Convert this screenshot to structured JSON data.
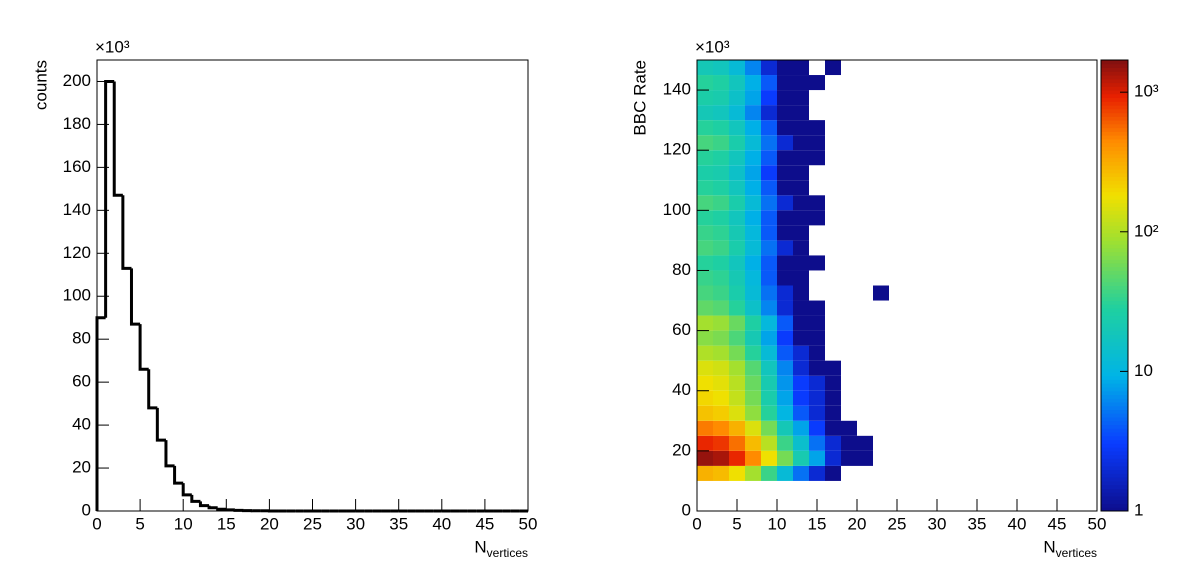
{
  "chart_data": [
    {
      "type": "histogram",
      "y_label": "counts",
      "y_multiplier": "×10³",
      "x_label": "N",
      "x_label_sub": "vertices",
      "bins": [
        0,
        1,
        2,
        3,
        4,
        5,
        6,
        7,
        8,
        9,
        10,
        11,
        12,
        13,
        14,
        15,
        16,
        17,
        18,
        19,
        20,
        21,
        22,
        23,
        24,
        25,
        26,
        27,
        28,
        29,
        30,
        31,
        32,
        33,
        34,
        35,
        36,
        37,
        38,
        39,
        40,
        41,
        42,
        43,
        44,
        45,
        46,
        47,
        48,
        49,
        50
      ],
      "values": [
        90,
        200,
        147,
        113,
        87,
        66,
        48,
        33,
        21,
        13,
        7.5,
        4.5,
        2.5,
        1.5,
        0.8,
        0.5,
        0.3,
        0.2,
        0.1,
        0.1,
        0,
        0,
        0,
        0,
        0,
        0,
        0,
        0,
        0,
        0,
        0,
        0,
        0,
        0,
        0,
        0,
        0,
        0,
        0,
        0,
        0,
        0,
        0,
        0,
        0,
        0,
        0,
        0,
        0,
        0
      ],
      "color": "#000000",
      "xlim": [
        0,
        50
      ],
      "xticks": [
        0,
        5,
        10,
        15,
        20,
        25,
        30,
        35,
        40,
        45,
        50
      ],
      "ylim": [
        0,
        210
      ],
      "yticks": [
        0,
        20,
        40,
        60,
        80,
        100,
        120,
        140,
        160,
        180,
        200
      ]
    },
    {
      "type": "heatmap",
      "y_label": "BBC Rate",
      "y_multiplier": "×10³",
      "x_label": "N",
      "x_label_sub": "vertices",
      "xbins": [
        0,
        2,
        4,
        6,
        8,
        10,
        12,
        14,
        16,
        18,
        20,
        22,
        24
      ],
      "ybins": [
        10,
        15,
        20,
        25,
        30,
        35,
        40,
        45,
        50,
        55,
        60,
        65,
        70,
        75,
        80,
        85,
        90,
        95,
        100,
        105,
        110,
        115,
        120,
        125,
        130,
        135,
        140,
        145,
        150
      ],
      "z": [
        [
          300,
          270,
          180,
          90,
          36,
          12,
          5,
          2,
          1,
          0,
          0,
          0
        ],
        [
          1500,
          1350,
          900,
          450,
          180,
          60,
          22,
          8,
          2,
          1,
          1,
          0
        ],
        [
          900,
          810,
          540,
          270,
          108,
          36,
          14,
          5,
          2,
          1,
          1,
          0
        ],
        [
          500,
          450,
          300,
          150,
          60,
          20,
          8,
          3,
          1,
          1,
          0,
          0
        ],
        [
          250,
          225,
          150,
          75,
          30,
          10,
          4,
          2,
          1,
          0,
          0,
          0
        ],
        [
          200,
          180,
          120,
          60,
          24,
          8,
          3,
          2,
          1,
          0,
          0,
          0
        ],
        [
          180,
          162,
          108,
          54,
          22,
          7,
          3,
          2,
          1,
          0,
          0,
          0
        ],
        [
          150,
          135,
          90,
          45,
          18,
          6,
          2,
          1,
          1,
          0,
          0,
          0
        ],
        [
          100,
          90,
          60,
          30,
          12,
          4,
          2,
          1,
          0,
          0,
          0,
          0
        ],
        [
          70,
          63,
          42,
          21,
          8,
          3,
          1,
          1,
          0,
          0,
          0,
          0
        ],
        [
          90,
          81,
          54,
          27,
          11,
          4,
          1,
          1,
          0,
          0,
          0,
          0
        ],
        [
          50,
          45,
          30,
          15,
          6,
          2,
          1,
          1,
          0,
          0,
          0,
          0
        ],
        [
          40,
          36,
          24,
          12,
          5,
          2,
          1,
          0,
          0,
          0,
          0,
          1
        ],
        [
          35,
          32,
          21,
          11,
          4,
          1,
          1,
          0,
          0,
          0,
          0,
          0
        ],
        [
          30,
          27,
          18,
          9,
          4,
          1,
          1,
          1,
          0,
          0,
          0,
          0
        ],
        [
          40,
          36,
          24,
          12,
          5,
          2,
          1,
          0,
          0,
          0,
          0,
          0
        ],
        [
          35,
          32,
          21,
          11,
          4,
          1,
          1,
          0,
          0,
          0,
          0,
          0
        ],
        [
          30,
          27,
          18,
          9,
          4,
          1,
          1,
          1,
          0,
          0,
          0,
          0
        ],
        [
          40,
          36,
          24,
          12,
          5,
          2,
          1,
          1,
          0,
          0,
          0,
          0
        ],
        [
          30,
          27,
          18,
          9,
          4,
          1,
          1,
          0,
          0,
          0,
          0,
          0
        ],
        [
          25,
          23,
          15,
          8,
          3,
          1,
          1,
          0,
          0,
          0,
          0,
          0
        ],
        [
          30,
          27,
          18,
          9,
          4,
          1,
          1,
          1,
          0,
          0,
          0,
          0
        ],
        [
          40,
          36,
          24,
          12,
          5,
          2,
          1,
          1,
          0,
          0,
          0,
          0
        ],
        [
          30,
          27,
          18,
          9,
          4,
          1,
          1,
          1,
          0,
          0,
          0,
          0
        ],
        [
          20,
          18,
          12,
          6,
          2,
          1,
          1,
          0,
          0,
          0,
          0,
          0
        ],
        [
          25,
          23,
          15,
          8,
          3,
          1,
          1,
          0,
          0,
          0,
          0,
          0
        ],
        [
          30,
          27,
          18,
          9,
          4,
          1,
          1,
          1,
          0,
          0,
          0,
          0
        ],
        [
          20,
          18,
          12,
          6,
          2,
          1,
          1,
          0,
          1,
          0,
          0,
          0
        ]
      ],
      "xlim": [
        0,
        50
      ],
      "xticks": [
        0,
        5,
        10,
        15,
        20,
        25,
        30,
        35,
        40,
        45,
        50
      ],
      "ylim": [
        0,
        150
      ],
      "yticks": [
        0,
        20,
        40,
        60,
        80,
        100,
        120,
        140
      ],
      "log_z": true,
      "zlim": [
        1,
        1700
      ],
      "zticks": [
        1,
        10,
        {
          "value": 100,
          "label": "10²"
        },
        {
          "value": 1000,
          "label": "10³"
        }
      ]
    }
  ]
}
